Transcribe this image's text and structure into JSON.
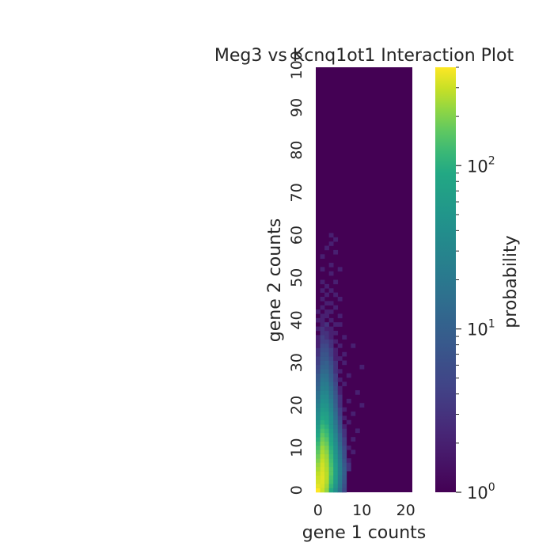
{
  "chart_data": {
    "type": "heatmap",
    "title": "Meg3 vs Kcnq1ot1 Interaction Plot",
    "xlabel": "gene 1 counts",
    "ylabel": "gene 2 counts",
    "xlim": [
      0,
      22
    ],
    "ylim": [
      0,
      100
    ],
    "x_ticks": [
      0,
      10,
      20
    ],
    "y_ticks": [
      0,
      10,
      20,
      30,
      40,
      50,
      60,
      70,
      80,
      90,
      100
    ],
    "x_tick_labels": [
      "0",
      "10",
      "20"
    ],
    "y_tick_labels": [
      "0",
      "10",
      "20",
      "30",
      "40",
      "50",
      "60",
      "70",
      "80",
      "90",
      "100"
    ],
    "colormap": "viridis",
    "colorbar": {
      "label": "probability",
      "scale": "log",
      "range": [
        1,
        400
      ],
      "tick_labels": [
        {
          "base": "10",
          "exp": "0",
          "value": 1
        },
        {
          "base": "10",
          "exp": "1",
          "value": 10
        },
        {
          "base": "10",
          "exp": "2",
          "value": 100
        }
      ]
    },
    "cells": [
      [
        0,
        0,
        400
      ],
      [
        1,
        0,
        300
      ],
      [
        2,
        0,
        220
      ],
      [
        3,
        0,
        90
      ],
      [
        4,
        0,
        40
      ],
      [
        5,
        0,
        15
      ],
      [
        6,
        0,
        5
      ],
      [
        0,
        1,
        350
      ],
      [
        1,
        1,
        320
      ],
      [
        2,
        1,
        240
      ],
      [
        3,
        1,
        110
      ],
      [
        4,
        1,
        50
      ],
      [
        5,
        1,
        18
      ],
      [
        6,
        1,
        6
      ],
      [
        0,
        2,
        320
      ],
      [
        1,
        2,
        330
      ],
      [
        2,
        2,
        260
      ],
      [
        3,
        2,
        130
      ],
      [
        4,
        2,
        60
      ],
      [
        5,
        2,
        20
      ],
      [
        6,
        2,
        7
      ],
      [
        0,
        3,
        300
      ],
      [
        1,
        3,
        340
      ],
      [
        2,
        3,
        270
      ],
      [
        3,
        3,
        140
      ],
      [
        4,
        3,
        65
      ],
      [
        5,
        3,
        22
      ],
      [
        6,
        3,
        8
      ],
      [
        0,
        4,
        280
      ],
      [
        1,
        4,
        330
      ],
      [
        2,
        4,
        270
      ],
      [
        3,
        4,
        150
      ],
      [
        4,
        4,
        70
      ],
      [
        5,
        4,
        25
      ],
      [
        6,
        4,
        9
      ],
      [
        0,
        5,
        250
      ],
      [
        1,
        5,
        320
      ],
      [
        2,
        5,
        260
      ],
      [
        3,
        5,
        150
      ],
      [
        4,
        5,
        70
      ],
      [
        5,
        5,
        25
      ],
      [
        6,
        5,
        9
      ],
      [
        7,
        5,
        3
      ],
      [
        0,
        6,
        230
      ],
      [
        1,
        6,
        310
      ],
      [
        2,
        6,
        250
      ],
      [
        3,
        6,
        140
      ],
      [
        4,
        6,
        65
      ],
      [
        5,
        6,
        24
      ],
      [
        6,
        6,
        8
      ],
      [
        7,
        6,
        3
      ],
      [
        0,
        7,
        200
      ],
      [
        1,
        7,
        290
      ],
      [
        2,
        7,
        240
      ],
      [
        3,
        7,
        130
      ],
      [
        4,
        7,
        60
      ],
      [
        5,
        7,
        22
      ],
      [
        6,
        7,
        7
      ],
      [
        7,
        7,
        2
      ],
      [
        0,
        8,
        180
      ],
      [
        1,
        8,
        270
      ],
      [
        2,
        8,
        230
      ],
      [
        3,
        8,
        120
      ],
      [
        4,
        8,
        55
      ],
      [
        5,
        8,
        20
      ],
      [
        6,
        8,
        6
      ],
      [
        0,
        9,
        160
      ],
      [
        1,
        9,
        250
      ],
      [
        2,
        9,
        210
      ],
      [
        3,
        9,
        110
      ],
      [
        4,
        9,
        50
      ],
      [
        5,
        9,
        18
      ],
      [
        6,
        9,
        6
      ],
      [
        8,
        9,
        2
      ],
      [
        0,
        10,
        140
      ],
      [
        1,
        10,
        230
      ],
      [
        2,
        10,
        190
      ],
      [
        3,
        10,
        100
      ],
      [
        4,
        10,
        45
      ],
      [
        5,
        10,
        15
      ],
      [
        6,
        10,
        5
      ],
      [
        7,
        10,
        2
      ],
      [
        0,
        11,
        120
      ],
      [
        1,
        11,
        200
      ],
      [
        2,
        11,
        170
      ],
      [
        3,
        11,
        90
      ],
      [
        4,
        11,
        40
      ],
      [
        5,
        11,
        13
      ],
      [
        6,
        11,
        4
      ],
      [
        0,
        12,
        100
      ],
      [
        1,
        12,
        180
      ],
      [
        2,
        12,
        150
      ],
      [
        3,
        12,
        80
      ],
      [
        4,
        12,
        35
      ],
      [
        5,
        12,
        11
      ],
      [
        6,
        12,
        4
      ],
      [
        8,
        12,
        2
      ],
      [
        0,
        13,
        85
      ],
      [
        1,
        13,
        160
      ],
      [
        2,
        13,
        130
      ],
      [
        3,
        13,
        70
      ],
      [
        4,
        13,
        30
      ],
      [
        5,
        13,
        10
      ],
      [
        6,
        13,
        3
      ],
      [
        0,
        14,
        70
      ],
      [
        1,
        14,
        140
      ],
      [
        2,
        14,
        115
      ],
      [
        3,
        14,
        60
      ],
      [
        4,
        14,
        25
      ],
      [
        5,
        14,
        8
      ],
      [
        6,
        14,
        3
      ],
      [
        9,
        14,
        2
      ],
      [
        0,
        15,
        60
      ],
      [
        1,
        15,
        120
      ],
      [
        2,
        15,
        100
      ],
      [
        3,
        15,
        50
      ],
      [
        4,
        15,
        22
      ],
      [
        5,
        15,
        7
      ],
      [
        6,
        15,
        2
      ],
      [
        0,
        16,
        50
      ],
      [
        1,
        16,
        100
      ],
      [
        2,
        16,
        85
      ],
      [
        3,
        16,
        45
      ],
      [
        4,
        16,
        19
      ],
      [
        5,
        16,
        6
      ],
      [
        7,
        16,
        2
      ],
      [
        0,
        17,
        40
      ],
      [
        1,
        17,
        85
      ],
      [
        2,
        17,
        75
      ],
      [
        3,
        17,
        40
      ],
      [
        4,
        17,
        16
      ],
      [
        5,
        17,
        5
      ],
      [
        6,
        17,
        2
      ],
      [
        0,
        18,
        35
      ],
      [
        1,
        18,
        70
      ],
      [
        2,
        18,
        65
      ],
      [
        3,
        18,
        35
      ],
      [
        4,
        18,
        14
      ],
      [
        5,
        18,
        4
      ],
      [
        8,
        18,
        2
      ],
      [
        0,
        19,
        30
      ],
      [
        1,
        19,
        60
      ],
      [
        2,
        19,
        55
      ],
      [
        3,
        19,
        30
      ],
      [
        4,
        19,
        12
      ],
      [
        5,
        19,
        4
      ],
      [
        6,
        19,
        2
      ],
      [
        0,
        20,
        25
      ],
      [
        1,
        20,
        50
      ],
      [
        2,
        20,
        48
      ],
      [
        3,
        20,
        26
      ],
      [
        4,
        20,
        10
      ],
      [
        5,
        20,
        3
      ],
      [
        10,
        20,
        2
      ],
      [
        0,
        21,
        20
      ],
      [
        1,
        21,
        42
      ],
      [
        2,
        21,
        40
      ],
      [
        3,
        21,
        22
      ],
      [
        4,
        21,
        9
      ],
      [
        5,
        21,
        3
      ],
      [
        7,
        21,
        2
      ],
      [
        0,
        22,
        17
      ],
      [
        1,
        22,
        36
      ],
      [
        2,
        22,
        35
      ],
      [
        3,
        22,
        18
      ],
      [
        4,
        22,
        8
      ],
      [
        5,
        22,
        3
      ],
      [
        0,
        23,
        15
      ],
      [
        1,
        23,
        30
      ],
      [
        2,
        23,
        30
      ],
      [
        3,
        23,
        16
      ],
      [
        4,
        23,
        7
      ],
      [
        5,
        23,
        2
      ],
      [
        9,
        23,
        2
      ],
      [
        0,
        24,
        12
      ],
      [
        1,
        24,
        26
      ],
      [
        2,
        24,
        25
      ],
      [
        3,
        24,
        14
      ],
      [
        4,
        24,
        6
      ],
      [
        5,
        24,
        2
      ],
      [
        0,
        25,
        10
      ],
      [
        1,
        25,
        22
      ],
      [
        2,
        25,
        22
      ],
      [
        3,
        25,
        12
      ],
      [
        4,
        25,
        5
      ],
      [
        6,
        25,
        2
      ],
      [
        0,
        26,
        9
      ],
      [
        1,
        26,
        19
      ],
      [
        2,
        26,
        18
      ],
      [
        3,
        26,
        10
      ],
      [
        4,
        26,
        4
      ],
      [
        5,
        26,
        2
      ],
      [
        0,
        27,
        8
      ],
      [
        1,
        27,
        16
      ],
      [
        2,
        27,
        16
      ],
      [
        3,
        27,
        9
      ],
      [
        4,
        27,
        4
      ],
      [
        7,
        27,
        2
      ],
      [
        0,
        28,
        6
      ],
      [
        1,
        28,
        13
      ],
      [
        2,
        28,
        13
      ],
      [
        3,
        28,
        8
      ],
      [
        4,
        28,
        3
      ],
      [
        5,
        28,
        2
      ],
      [
        0,
        29,
        5
      ],
      [
        1,
        29,
        11
      ],
      [
        2,
        29,
        11
      ],
      [
        3,
        29,
        7
      ],
      [
        4,
        29,
        3
      ],
      [
        10,
        29,
        2
      ],
      [
        0,
        30,
        4
      ],
      [
        1,
        30,
        9
      ],
      [
        2,
        30,
        10
      ],
      [
        3,
        30,
        6
      ],
      [
        4,
        30,
        3
      ],
      [
        6,
        30,
        2
      ],
      [
        0,
        31,
        4
      ],
      [
        1,
        31,
        8
      ],
      [
        2,
        31,
        8
      ],
      [
        3,
        31,
        5
      ],
      [
        4,
        31,
        2
      ],
      [
        5,
        31,
        2
      ],
      [
        0,
        32,
        3
      ],
      [
        1,
        32,
        7
      ],
      [
        2,
        32,
        7
      ],
      [
        3,
        32,
        4
      ],
      [
        4,
        32,
        2
      ],
      [
        6,
        32,
        2
      ],
      [
        0,
        33,
        3
      ],
      [
        1,
        33,
        6
      ],
      [
        2,
        33,
        6
      ],
      [
        3,
        33,
        4
      ],
      [
        4,
        33,
        2
      ],
      [
        0,
        34,
        2
      ],
      [
        1,
        34,
        5
      ],
      [
        2,
        34,
        5
      ],
      [
        3,
        34,
        3
      ],
      [
        5,
        34,
        2
      ],
      [
        8,
        34,
        2
      ],
      [
        0,
        35,
        2
      ],
      [
        1,
        35,
        4
      ],
      [
        2,
        35,
        4
      ],
      [
        3,
        35,
        3
      ],
      [
        4,
        35,
        2
      ],
      [
        0,
        36,
        2
      ],
      [
        1,
        36,
        4
      ],
      [
        2,
        36,
        3
      ],
      [
        3,
        36,
        2
      ],
      [
        6,
        36,
        2
      ],
      [
        1,
        37,
        3
      ],
      [
        2,
        37,
        3
      ],
      [
        3,
        37,
        2
      ],
      [
        4,
        37,
        2
      ],
      [
        0,
        38,
        2
      ],
      [
        1,
        38,
        3
      ],
      [
        2,
        38,
        2
      ],
      [
        3,
        38,
        2
      ],
      [
        1,
        39,
        2
      ],
      [
        2,
        39,
        3
      ],
      [
        4,
        39,
        2
      ],
      [
        5,
        39,
        2
      ],
      [
        0,
        40,
        2
      ],
      [
        1,
        40,
        2
      ],
      [
        3,
        40,
        2
      ],
      [
        1,
        41,
        2
      ],
      [
        2,
        41,
        2
      ],
      [
        5,
        41,
        2
      ],
      [
        0,
        42,
        2
      ],
      [
        2,
        42,
        2
      ],
      [
        3,
        42,
        2
      ],
      [
        1,
        43,
        2
      ],
      [
        4,
        43,
        2
      ],
      [
        2,
        44,
        2
      ],
      [
        3,
        44,
        2
      ],
      [
        1,
        45,
        2
      ],
      [
        5,
        45,
        2
      ],
      [
        2,
        46,
        2
      ],
      [
        4,
        46,
        2
      ],
      [
        1,
        47,
        2
      ],
      [
        3,
        47,
        2
      ],
      [
        2,
        48,
        2
      ],
      [
        1,
        49,
        2
      ],
      [
        4,
        49,
        2
      ],
      [
        3,
        51,
        2
      ],
      [
        1,
        52,
        2
      ],
      [
        5,
        52,
        2
      ],
      [
        3,
        53,
        2
      ],
      [
        1,
        55,
        2
      ],
      [
        4,
        56,
        2
      ],
      [
        2,
        57,
        2
      ],
      [
        3,
        58,
        2
      ],
      [
        4,
        59,
        2
      ],
      [
        3,
        60,
        2
      ]
    ]
  }
}
